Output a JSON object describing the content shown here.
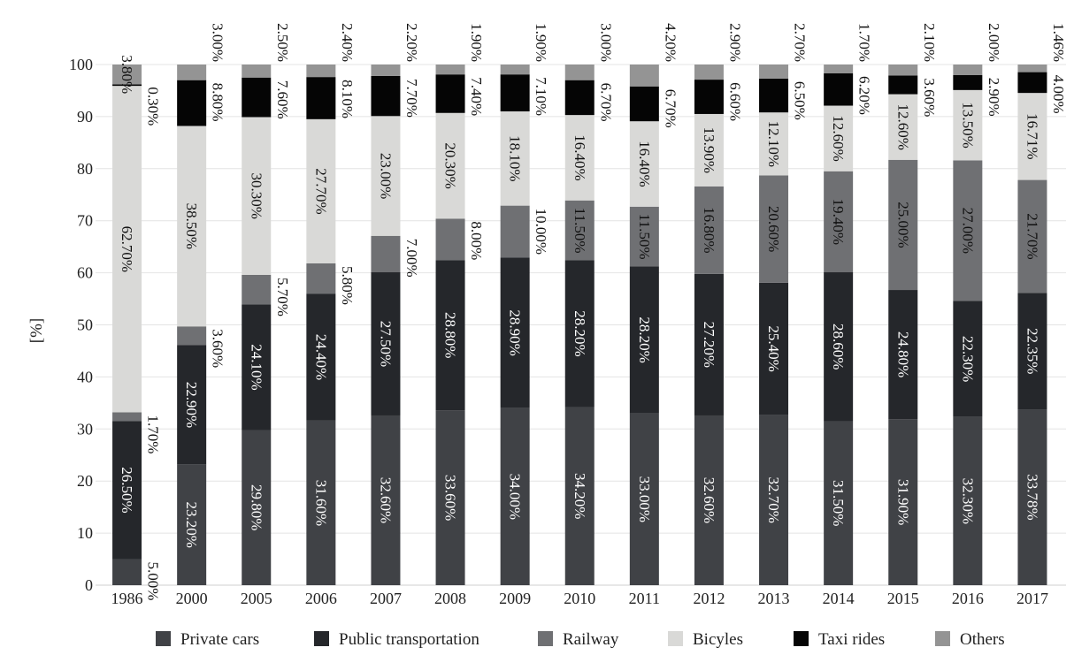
{
  "chart_data": {
    "type": "bar",
    "stacked": true,
    "title": "",
    "xlabel": "",
    "ylabel": "[%]",
    "ylim": [
      0,
      100
    ],
    "yticks": [
      0,
      10,
      20,
      30,
      40,
      50,
      60,
      70,
      80,
      90,
      100
    ],
    "categories": [
      "1986",
      "2000",
      "2005",
      "2006",
      "2007",
      "2008",
      "2009",
      "2010",
      "2011",
      "2012",
      "2013",
      "2014",
      "2015",
      "2016",
      "2017"
    ],
    "legend_position": "bottom",
    "grid": "horizontal",
    "series": [
      {
        "name": "Private cars",
        "color": "#404246",
        "label_color": "#ffffff",
        "values": [
          5.0,
          23.2,
          29.8,
          31.6,
          32.6,
          33.6,
          34.0,
          34.2,
          33.0,
          32.6,
          32.7,
          31.5,
          31.9,
          32.3,
          33.78
        ],
        "labels": [
          "5.00%",
          "23.20%",
          "29.80%",
          "31.60%",
          "32.60%",
          "33.60%",
          "34.00%",
          "34.20%",
          "33.00%",
          "32.60%",
          "32.70%",
          "31.50%",
          "31.90%",
          "32.30%",
          "33.78%"
        ],
        "label_outside": [
          true,
          false,
          false,
          false,
          false,
          false,
          false,
          false,
          false,
          false,
          false,
          false,
          false,
          false,
          false
        ]
      },
      {
        "name": "Public transportation",
        "color": "#25272b",
        "label_color": "#ffffff",
        "values": [
          26.5,
          22.9,
          24.1,
          24.4,
          27.5,
          28.8,
          28.9,
          28.2,
          28.2,
          27.2,
          25.4,
          28.6,
          24.8,
          22.3,
          22.35
        ],
        "labels": [
          "26.50%",
          "22.90%",
          "24.10%",
          "24.40%",
          "27.50%",
          "28.80%",
          "28.90%",
          "28.20%",
          "28.20%",
          "27.20%",
          "25.40%",
          "28.60%",
          "24.80%",
          "22.30%",
          "22.35%"
        ],
        "label_outside": [
          false,
          false,
          false,
          false,
          false,
          false,
          false,
          false,
          false,
          false,
          false,
          false,
          false,
          false,
          false
        ]
      },
      {
        "name": "Railway",
        "color": "#6f7073",
        "label_color": "#111111",
        "values": [
          1.7,
          3.6,
          5.7,
          5.8,
          7.0,
          8.0,
          10.0,
          11.5,
          11.5,
          16.8,
          20.6,
          19.4,
          25.0,
          27.0,
          21.7
        ],
        "labels": [
          "1.70%",
          "3.60%",
          "5.70%",
          "5.80%",
          "7.00%",
          "8.00%",
          "10.00%",
          "11.50%",
          "11.50%",
          "16.80%",
          "20.60%",
          "19.40%",
          "25.00%",
          "27.00%",
          "21.70%"
        ],
        "label_outside": [
          true,
          true,
          true,
          true,
          true,
          true,
          true,
          false,
          false,
          false,
          false,
          false,
          false,
          false,
          false
        ]
      },
      {
        "name": "Bicyles",
        "color": "#d9d9d7",
        "label_color": "#111111",
        "values": [
          62.7,
          38.5,
          30.3,
          27.7,
          23.0,
          20.3,
          18.1,
          16.4,
          16.4,
          13.9,
          12.1,
          12.6,
          12.6,
          13.5,
          16.71
        ],
        "labels": [
          "62.70%",
          "38.50%",
          "30.30%",
          "27.70%",
          "23.00%",
          "20.30%",
          "18.10%",
          "16.40%",
          "16.40%",
          "13.90%",
          "12.10%",
          "12.60%",
          "12.60%",
          "13.50%",
          "16.71%"
        ],
        "label_outside": [
          false,
          false,
          false,
          false,
          false,
          false,
          false,
          false,
          false,
          false,
          false,
          false,
          false,
          false,
          false
        ]
      },
      {
        "name": "Taxi rides",
        "color": "#050505",
        "label_color": "#111111",
        "values": [
          0.3,
          8.8,
          7.6,
          8.1,
          7.7,
          7.4,
          7.1,
          6.7,
          6.7,
          6.6,
          6.5,
          6.2,
          3.6,
          2.9,
          4.0
        ],
        "labels": [
          "0.30%",
          "8.80%",
          "7.60%",
          "8.10%",
          "7.70%",
          "7.40%",
          "7.10%",
          "6.70%",
          "6.70%",
          "6.60%",
          "6.50%",
          "6.20%",
          "3.60%",
          "2.90%",
          "4.00%"
        ],
        "label_outside": [
          true,
          true,
          true,
          true,
          true,
          true,
          true,
          true,
          true,
          true,
          true,
          true,
          true,
          true,
          true
        ]
      },
      {
        "name": "Others",
        "color": "#949494",
        "label_color": "#111111",
        "values": [
          3.8,
          3.0,
          2.5,
          2.4,
          2.2,
          1.9,
          1.9,
          3.0,
          4.2,
          2.9,
          2.7,
          1.7,
          2.1,
          2.0,
          1.46
        ],
        "labels": [
          "3.80%",
          "3.00%",
          "2.50%",
          "2.40%",
          "2.20%",
          "1.90%",
          "1.90%",
          "3.00%",
          "4.20%",
          "2.90%",
          "2.70%",
          "1.70%",
          "2.10%",
          "2.00%",
          "1.46%"
        ],
        "label_outside": [
          false,
          true,
          true,
          true,
          true,
          true,
          true,
          true,
          true,
          true,
          true,
          true,
          true,
          true,
          true
        ]
      }
    ]
  }
}
